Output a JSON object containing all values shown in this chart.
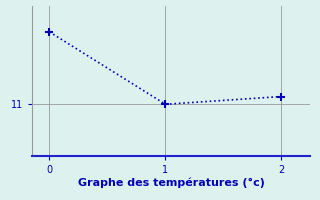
{
  "x": [
    0,
    1,
    2
  ],
  "y": [
    13.8,
    11.0,
    11.3
  ],
  "line_color": "#0000bb",
  "bg_color": "#ddf2ee",
  "xlabel": "Graphe des températures (°c)",
  "xlabel_color": "#0000bb",
  "xlabel_fontsize": 8,
  "ytick_label": "11",
  "ytick_value": 11.0,
  "xlim": [
    -0.15,
    2.25
  ],
  "ylim": [
    9.0,
    14.8
  ],
  "grid_color": "#999999",
  "axis_color": "#999999",
  "bottom_axis_color": "#2222cc",
  "marker": "+",
  "markersize": 6,
  "linestyle": "dotted",
  "linewidth": 1.2,
  "tick_fontsize": 7
}
